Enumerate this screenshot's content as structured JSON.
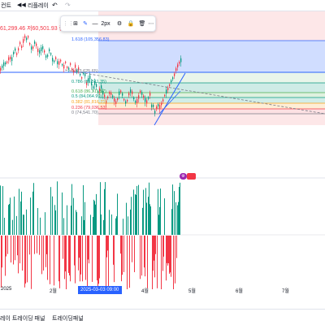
{
  "topbar": {
    "left_fragment": "컨트",
    "replay_label": "리플레이",
    "undo_icon": "undo-icon",
    "redo_icon": "redo-icon"
  },
  "legend": {
    "ohlc_text": "61,299.46  저60,501.93  종",
    "series_icon": "signal-icon"
  },
  "drawing_toolbar": {
    "width_label": "2px"
  },
  "fibonacci": {
    "levels": [
      {
        "ratio": "1.618",
        "price": "(105,356.83)",
        "color": "#2962ff"
      },
      {
        "ratio": "1",
        "price": "(93,625.65)",
        "color": "#787b86"
      },
      {
        "ratio": "0.786",
        "price": "(89,511.35)",
        "color": "#089981"
      },
      {
        "ratio": "0.618",
        "price": "(86,311.97)",
        "color": "#4caf50"
      },
      {
        "ratio": "0.5",
        "price": "(84,064.99)",
        "color": "#089981"
      },
      {
        "ratio": "0.382",
        "price": "(81,816.71)",
        "color": "#f7a21b"
      },
      {
        "ratio": "0.236",
        "price": "(79,036.53)",
        "color": "#f23645"
      },
      {
        "ratio": "0",
        "price": "(74,541.70)",
        "color": "#787b86"
      }
    ]
  },
  "indicator": {
    "tag_label": "",
    "colors": {
      "up": "#089981",
      "down": "#f23645"
    }
  },
  "time_axis": {
    "labels": [
      "2025",
      "2월",
      "4월",
      "5월",
      "6월",
      "7월"
    ],
    "cursor_label": "2025-03-03  09:00"
  },
  "bottom_tabs": [
    "레이 트레이딩 패널",
    "트레이딩패널"
  ]
}
